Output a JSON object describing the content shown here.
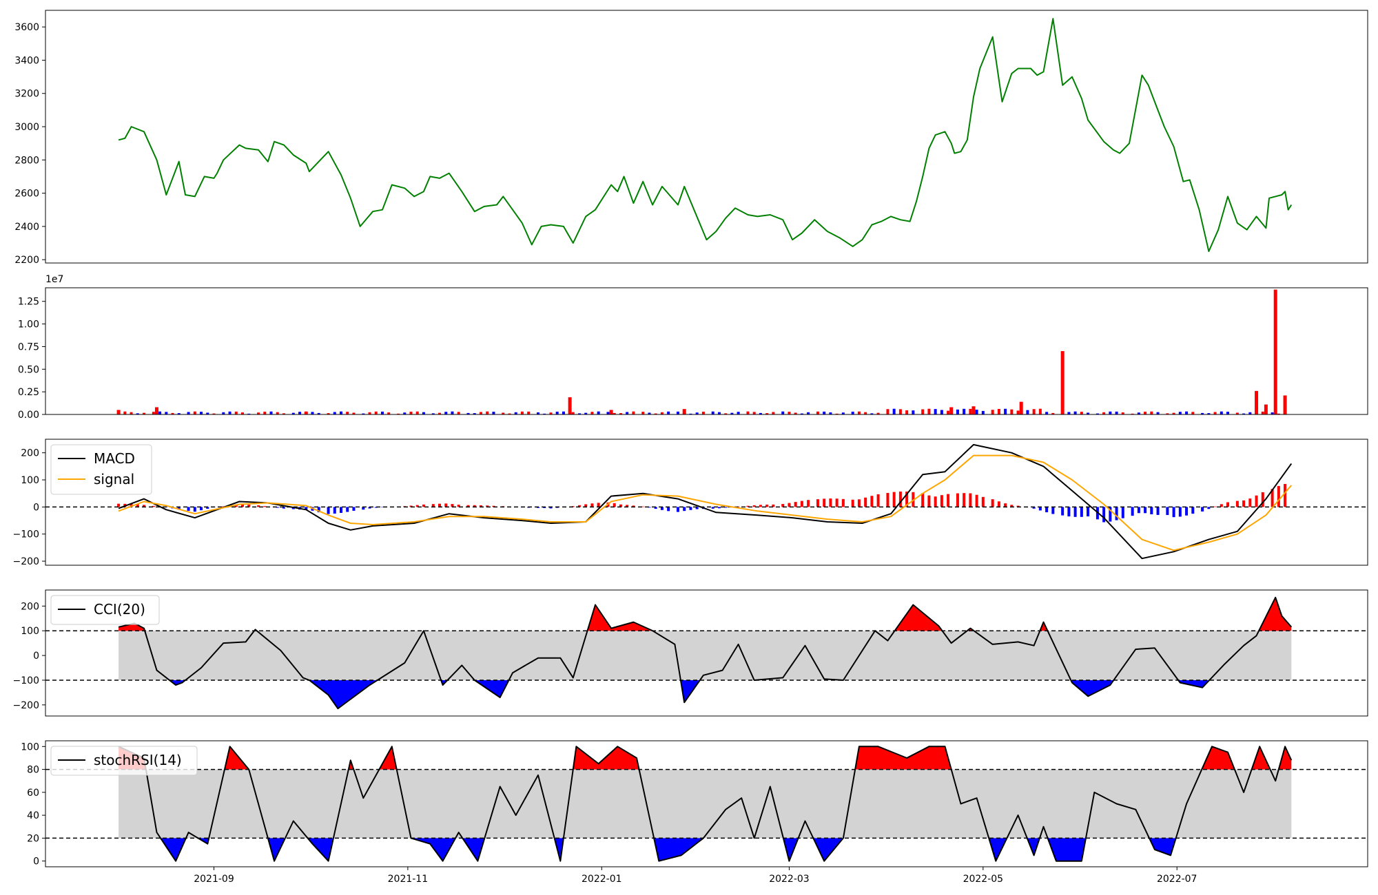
{
  "chart_data": [
    {
      "type": "line",
      "panel": "price",
      "xlabel": "",
      "ylabel": "",
      "ylim": [
        2180,
        3700
      ],
      "yticks": [
        2200,
        2400,
        2600,
        2800,
        3000,
        3200,
        3400,
        3600
      ],
      "ytick_labels": [
        "2200",
        "2400",
        "2600",
        "2800",
        "3000",
        "3200",
        "3400",
        "3600"
      ],
      "series": [
        {
          "color": "#008000",
          "x": [
            "2021-08-02",
            "2021-08-04",
            "2021-08-06",
            "2021-08-10",
            "2021-08-14",
            "2021-08-17",
            "2021-08-21",
            "2021-08-23",
            "2021-08-26",
            "2021-08-29",
            "2021-09-01",
            "2021-09-02",
            "2021-09-04",
            "2021-09-09",
            "2021-09-11",
            "2021-09-15",
            "2021-09-18",
            "2021-09-20",
            "2021-09-23",
            "2021-09-26",
            "2021-09-30",
            "2021-10-01",
            "2021-10-04",
            "2021-10-07",
            "2021-10-11",
            "2021-10-14",
            "2021-10-17",
            "2021-10-21",
            "2021-10-24",
            "2021-10-27",
            "2021-10-31",
            "2021-11-03",
            "2021-11-06",
            "2021-11-08",
            "2021-11-11",
            "2021-11-14",
            "2021-11-18",
            "2021-11-22",
            "2021-11-25",
            "2021-11-29",
            "2021-12-01",
            "2021-12-04",
            "2021-12-07",
            "2021-12-10",
            "2021-12-13",
            "2021-12-16",
            "2021-12-20",
            "2021-12-23",
            "2021-12-27",
            "2021-12-30",
            "2022-01-04",
            "2022-01-06",
            "2022-01-08",
            "2022-01-11",
            "2022-01-14",
            "2022-01-17",
            "2022-01-20",
            "2022-01-25",
            "2022-01-27",
            "2022-02-03",
            "2022-02-06",
            "2022-02-09",
            "2022-02-12",
            "2022-02-16",
            "2022-02-19",
            "2022-02-23",
            "2022-02-27",
            "2022-03-02",
            "2022-03-05",
            "2022-03-09",
            "2022-03-13",
            "2022-03-17",
            "2022-03-21",
            "2022-03-24",
            "2022-03-27",
            "2022-03-30",
            "2022-04-02",
            "2022-04-05",
            "2022-04-08",
            "2022-04-10",
            "2022-04-12",
            "2022-04-14",
            "2022-04-16",
            "2022-04-19",
            "2022-04-21",
            "2022-04-22",
            "2022-04-24",
            "2022-04-26",
            "2022-04-28",
            "2022-04-30",
            "2022-05-04",
            "2022-05-07",
            "2022-05-10",
            "2022-05-12",
            "2022-05-16",
            "2022-05-18",
            "2022-05-20",
            "2022-05-23",
            "2022-05-26",
            "2022-05-29",
            "2022-06-01",
            "2022-06-03",
            "2022-06-08",
            "2022-06-11",
            "2022-06-13",
            "2022-06-16",
            "2022-06-20",
            "2022-06-22",
            "2022-06-25",
            "2022-06-27",
            "2022-06-30",
            "2022-07-03",
            "2022-07-05",
            "2022-07-08",
            "2022-07-11",
            "2022-07-14",
            "2022-07-17",
            "2022-07-20",
            "2022-07-23",
            "2022-07-26",
            "2022-07-29",
            "2022-07-30",
            "2022-08-03",
            "2022-08-04",
            "2022-08-05",
            "2022-08-06"
          ],
          "values": [
            2920,
            2930,
            3000,
            2970,
            2800,
            2590,
            2790,
            2590,
            2580,
            2700,
            2690,
            2720,
            2800,
            2890,
            2870,
            2860,
            2790,
            2910,
            2890,
            2830,
            2780,
            2730,
            2790,
            2850,
            2710,
            2570,
            2400,
            2490,
            2500,
            2650,
            2630,
            2580,
            2610,
            2700,
            2690,
            2720,
            2610,
            2490,
            2520,
            2530,
            2580,
            2500,
            2420,
            2290,
            2400,
            2410,
            2400,
            2300,
            2460,
            2500,
            2650,
            2610,
            2700,
            2540,
            2670,
            2530,
            2640,
            2530,
            2640,
            2320,
            2370,
            2450,
            2510,
            2470,
            2460,
            2470,
            2440,
            2320,
            2360,
            2440,
            2370,
            2330,
            2280,
            2320,
            2410,
            2430,
            2460,
            2440,
            2430,
            2550,
            2700,
            2870,
            2950,
            2970,
            2900,
            2840,
            2850,
            2920,
            3180,
            3350,
            3540,
            3150,
            3320,
            3350,
            3350,
            3310,
            3330,
            3650,
            3250,
            3300,
            3170,
            3040,
            2910,
            2860,
            2840,
            2900,
            3310,
            3250,
            3100,
            3000,
            2880,
            2670,
            2680,
            2500,
            2250,
            2380,
            2580,
            2420,
            2380,
            2460,
            2390,
            2570,
            2590,
            2610,
            2500,
            2530
          ]
        }
      ]
    },
    {
      "type": "bar",
      "panel": "volume",
      "offset_text": "1e7",
      "ylim": [
        0,
        1.4
      ],
      "yticks": [
        0,
        0.25,
        0.5,
        0.75,
        1.0,
        1.25
      ],
      "ytick_labels": [
        "0.00",
        "0.25",
        "0.50",
        "0.75",
        "1.00",
        "1.25"
      ],
      "up_color": "#ff0000",
      "down_color": "#0000ff",
      "series": [
        {
          "name": "volume",
          "x": [
            "2021-08-02",
            "2021-08-14",
            "2021-09-30",
            "2021-12-22",
            "2022-01-04",
            "2022-01-27",
            "2022-04-21",
            "2022-04-28",
            "2022-05-13",
            "2022-05-26",
            "2022-07-26",
            "2022-07-29",
            "2022-08-01",
            "2022-08-04"
          ],
          "values": [
            0.05,
            0.08,
            0.03,
            0.19,
            0.05,
            0.06,
            0.08,
            0.09,
            0.14,
            0.7,
            0.26,
            0.11,
            1.38,
            0.21
          ]
        }
      ]
    },
    {
      "type": "line",
      "panel": "macd",
      "ylim": [
        -215,
        250
      ],
      "yticks": [
        -200,
        -100,
        0,
        100,
        200
      ],
      "ytick_labels": [
        "−200",
        "−100",
        "0",
        "100",
        "200"
      ],
      "reference_lines": [
        0
      ],
      "legend": "top-left",
      "series": [
        {
          "name": "MACD",
          "color": "#000000",
          "x": [
            "2021-08-02",
            "2021-08-10",
            "2021-08-17",
            "2021-08-26",
            "2021-09-09",
            "2021-09-18",
            "2021-09-30",
            "2021-10-07",
            "2021-10-14",
            "2021-10-21",
            "2021-11-03",
            "2021-11-14",
            "2021-11-25",
            "2021-12-07",
            "2021-12-16",
            "2021-12-27",
            "2022-01-04",
            "2022-01-14",
            "2022-01-25",
            "2022-02-06",
            "2022-02-19",
            "2022-03-02",
            "2022-03-13",
            "2022-03-24",
            "2022-04-02",
            "2022-04-12",
            "2022-04-19",
            "2022-04-28",
            "2022-05-10",
            "2022-05-20",
            "2022-05-29",
            "2022-06-08",
            "2022-06-20",
            "2022-06-30",
            "2022-07-11",
            "2022-07-20",
            "2022-07-29",
            "2022-08-06"
          ],
          "values": [
            -5,
            30,
            -10,
            -40,
            20,
            15,
            -10,
            -60,
            -85,
            -70,
            -60,
            -25,
            -40,
            -50,
            -60,
            -55,
            40,
            50,
            30,
            -20,
            -30,
            -40,
            -55,
            -60,
            -25,
            120,
            130,
            230,
            200,
            150,
            60,
            -40,
            -190,
            -165,
            -120,
            -90,
            30,
            160
          ]
        },
        {
          "name": "signal",
          "color": "#ffa500",
          "x": [
            "2021-08-02",
            "2021-08-10",
            "2021-08-17",
            "2021-08-26",
            "2021-09-09",
            "2021-09-18",
            "2021-09-30",
            "2021-10-07",
            "2021-10-14",
            "2021-10-21",
            "2021-11-03",
            "2021-11-14",
            "2021-11-25",
            "2021-12-07",
            "2021-12-16",
            "2021-12-27",
            "2022-01-04",
            "2022-01-14",
            "2022-01-25",
            "2022-02-06",
            "2022-02-19",
            "2022-03-02",
            "2022-03-13",
            "2022-03-24",
            "2022-04-02",
            "2022-04-12",
            "2022-04-19",
            "2022-04-28",
            "2022-05-10",
            "2022-05-20",
            "2022-05-29",
            "2022-06-08",
            "2022-06-20",
            "2022-06-30",
            "2022-07-11",
            "2022-07-20",
            "2022-07-29",
            "2022-08-06"
          ],
          "values": [
            -15,
            20,
            5,
            -25,
            10,
            15,
            5,
            -30,
            -60,
            -65,
            -55,
            -35,
            -35,
            -45,
            -55,
            -55,
            20,
            45,
            40,
            10,
            -15,
            -30,
            -45,
            -55,
            -35,
            50,
            100,
            190,
            190,
            165,
            100,
            10,
            -120,
            -160,
            -130,
            -100,
            -30,
            80
          ]
        }
      ],
      "histogram": {
        "up_color": "#ff0000",
        "down_color": "#0000ff",
        "x": [
          "2021-08-10",
          "2021-08-26",
          "2021-09-09",
          "2021-09-30",
          "2021-10-07",
          "2021-10-21",
          "2021-11-14",
          "2021-12-16",
          "2022-01-04",
          "2022-01-25",
          "2022-04-12",
          "2022-04-28",
          "2022-05-20",
          "2022-06-08",
          "2022-06-20",
          "2022-06-30",
          "2022-07-20",
          "2022-08-04"
        ],
        "values": [
          12,
          -18,
          15,
          -15,
          -30,
          -5,
          15,
          -8,
          22,
          -20,
          65,
          50,
          -15,
          -70,
          -20,
          -55,
          30,
          85
        ]
      }
    },
    {
      "type": "area",
      "panel": "cci",
      "ylim": [
        -245,
        265
      ],
      "yticks": [
        -200,
        -100,
        0,
        100,
        200
      ],
      "ytick_labels": [
        "−200",
        "−100",
        "0",
        "100",
        "200"
      ],
      "reference_lines": [
        100,
        -100
      ],
      "legend": "top-left",
      "fill_above_color": "#ff0000",
      "fill_below_color": "#0000ff",
      "band_color": "#d3d3d3",
      "series": [
        {
          "name": "CCI(20)",
          "color": "#000000",
          "x": [
            "2021-08-02",
            "2021-08-07",
            "2021-08-10",
            "2021-08-14",
            "2021-08-20",
            "2021-08-22",
            "2021-08-28",
            "2021-09-04",
            "2021-09-11",
            "2021-09-14",
            "2021-09-22",
            "2021-09-29",
            "2021-10-01",
            "2021-10-07",
            "2021-10-10",
            "2021-10-20",
            "2021-10-31",
            "2021-11-06",
            "2021-11-12",
            "2021-11-18",
            "2021-11-22",
            "2021-11-30",
            "2021-12-04",
            "2021-12-12",
            "2021-12-19",
            "2021-12-23",
            "2021-12-30",
            "2022-01-04",
            "2022-01-11",
            "2022-01-17",
            "2022-01-24",
            "2022-01-27",
            "2022-02-02",
            "2022-02-08",
            "2022-02-13",
            "2022-02-18",
            "2022-02-27",
            "2022-03-06",
            "2022-03-12",
            "2022-03-18",
            "2022-03-28",
            "2022-04-01",
            "2022-04-09",
            "2022-04-17",
            "2022-04-21",
            "2022-04-27",
            "2022-05-04",
            "2022-05-12",
            "2022-05-17",
            "2022-05-20",
            "2022-05-29",
            "2022-06-03",
            "2022-06-10",
            "2022-06-18",
            "2022-06-24",
            "2022-07-02",
            "2022-07-09",
            "2022-07-16",
            "2022-07-22",
            "2022-07-26",
            "2022-08-01",
            "2022-08-03",
            "2022-08-06"
          ],
          "values": [
            115,
            130,
            110,
            -60,
            -120,
            -110,
            -50,
            50,
            55,
            105,
            20,
            -90,
            -100,
            -160,
            -215,
            -120,
            -30,
            100,
            -120,
            -40,
            -100,
            -170,
            -70,
            -10,
            -10,
            -90,
            205,
            110,
            135,
            100,
            45,
            -190,
            -80,
            -60,
            45,
            -100,
            -90,
            40,
            -95,
            -100,
            100,
            60,
            205,
            120,
            50,
            110,
            45,
            55,
            40,
            135,
            -110,
            -165,
            -120,
            25,
            30,
            -110,
            -130,
            -35,
            40,
            80,
            235,
            160,
            115
          ]
        }
      ]
    },
    {
      "type": "area",
      "panel": "stochrsi",
      "ylim": [
        -5,
        105
      ],
      "yticks": [
        0,
        20,
        40,
        60,
        80,
        100
      ],
      "ytick_labels": [
        "0",
        "20",
        "40",
        "60",
        "80",
        "100"
      ],
      "reference_lines": [
        80,
        20
      ],
      "legend": "top-left",
      "fill_above_color": "#ff0000",
      "fill_below_color": "#0000ff",
      "band_color": "#d3d3d3",
      "series": [
        {
          "name": "stochRSI(14)",
          "color": "#000000",
          "x": [
            "2021-08-02",
            "2021-08-10",
            "2021-08-14",
            "2021-08-20",
            "2021-08-24",
            "2021-08-30",
            "2021-09-06",
            "2021-09-12",
            "2021-09-20",
            "2021-09-26",
            "2021-10-02",
            "2021-10-07",
            "2021-10-14",
            "2021-10-18",
            "2021-10-22",
            "2021-10-27",
            "2021-11-02",
            "2021-11-08",
            "2021-11-12",
            "2021-11-17",
            "2021-11-23",
            "2021-11-30",
            "2021-12-05",
            "2021-12-12",
            "2021-12-19",
            "2021-12-24",
            "2021-12-31",
            "2022-01-06",
            "2022-01-12",
            "2022-01-19",
            "2022-01-26",
            "2022-02-02",
            "2022-02-09",
            "2022-02-14",
            "2022-02-18",
            "2022-02-23",
            "2022-03-01",
            "2022-03-06",
            "2022-03-12",
            "2022-03-18",
            "2022-03-23",
            "2022-03-29",
            "2022-04-07",
            "2022-04-14",
            "2022-04-19",
            "2022-04-24",
            "2022-04-29",
            "2022-05-05",
            "2022-05-12",
            "2022-05-17",
            "2022-05-20",
            "2022-05-24",
            "2022-06-01",
            "2022-06-05",
            "2022-06-12",
            "2022-06-18",
            "2022-06-24",
            "2022-06-29",
            "2022-07-04",
            "2022-07-12",
            "2022-07-17",
            "2022-07-22",
            "2022-07-27",
            "2022-08-01",
            "2022-08-04",
            "2022-08-06"
          ],
          "values": [
            100,
            90,
            25,
            0,
            25,
            15,
            100,
            80,
            0,
            35,
            15,
            0,
            88,
            55,
            75,
            100,
            20,
            15,
            0,
            25,
            0,
            65,
            40,
            75,
            0,
            100,
            85,
            100,
            90,
            0,
            5,
            20,
            45,
            55,
            20,
            65,
            0,
            35,
            0,
            20,
            100,
            100,
            90,
            100,
            100,
            50,
            55,
            0,
            40,
            5,
            30,
            0,
            0,
            60,
            50,
            45,
            10,
            5,
            50,
            100,
            95,
            60,
            100,
            70,
            100,
            88
          ]
        }
      ]
    },
    {
      "type": "axis",
      "panel": "shared-x",
      "xlim": [
        "2021-07-10",
        "2022-08-30"
      ],
      "xticks": [
        "2021-09-01",
        "2021-11-01",
        "2022-01-01",
        "2022-03-01",
        "2022-05-01",
        "2022-07-01"
      ],
      "xtick_labels": [
        "2021-09",
        "2021-11",
        "2022-01",
        "2022-03",
        "2022-05",
        "2022-07"
      ]
    }
  ]
}
